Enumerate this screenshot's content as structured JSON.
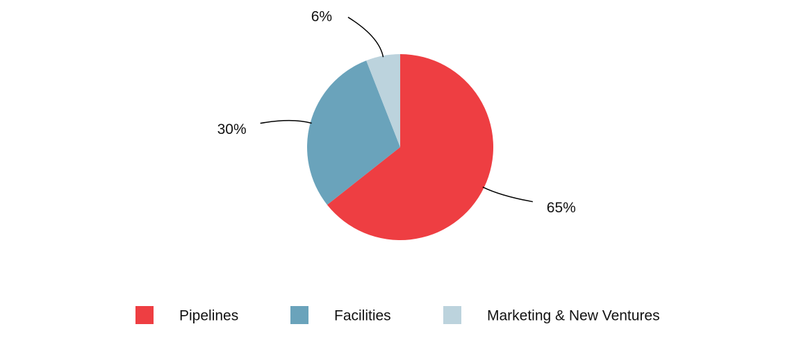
{
  "chart_data": {
    "type": "pie",
    "categories": [
      "Pipelines",
      "Facilities",
      "Marketing & New Ventures"
    ],
    "values": [
      65,
      30,
      6
    ],
    "value_labels": [
      "65%",
      "30%",
      "6%"
    ],
    "colors": [
      "#ee3e42",
      "#6aa3bb",
      "#bcd3dd"
    ],
    "legend": "bottom"
  }
}
